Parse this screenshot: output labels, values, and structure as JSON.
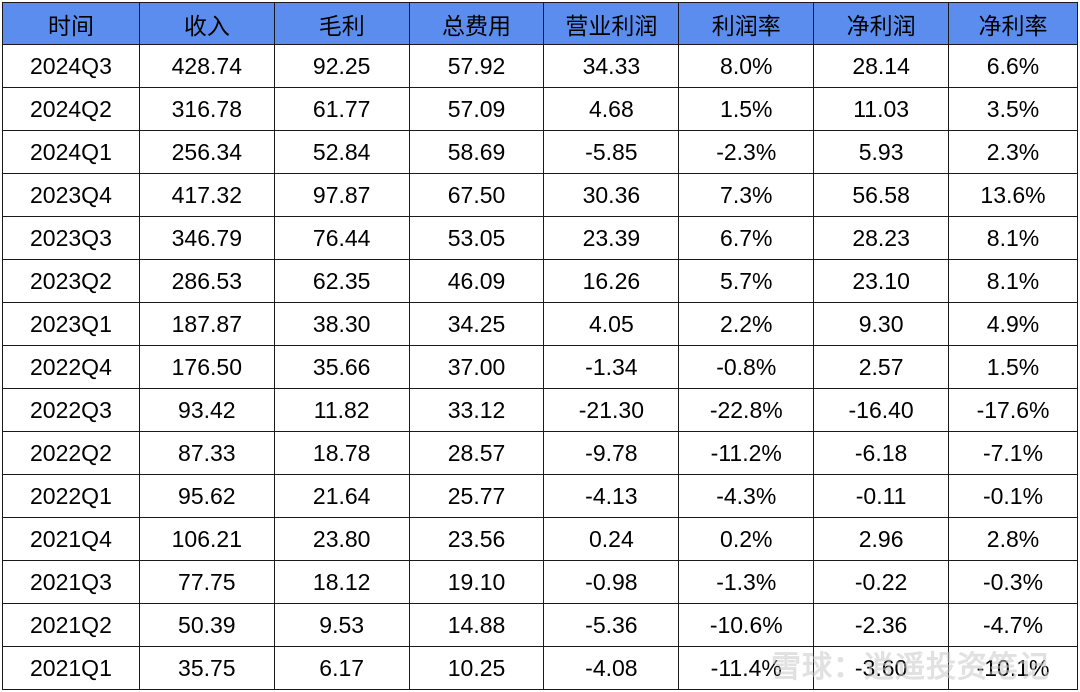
{
  "table": {
    "headers": [
      "时间",
      "收入",
      "毛利",
      "总费用",
      "营业利润",
      "利润率",
      "净利润",
      "净利率"
    ],
    "rows": [
      [
        "2024Q3",
        "428.74",
        "92.25",
        "57.92",
        "34.33",
        "8.0%",
        "28.14",
        "6.6%"
      ],
      [
        "2024Q2",
        "316.78",
        "61.77",
        "57.09",
        "4.68",
        "1.5%",
        "11.03",
        "3.5%"
      ],
      [
        "2024Q1",
        "256.34",
        "52.84",
        "58.69",
        "-5.85",
        "-2.3%",
        "5.93",
        "2.3%"
      ],
      [
        "2023Q4",
        "417.32",
        "97.87",
        "67.50",
        "30.36",
        "7.3%",
        "56.58",
        "13.6%"
      ],
      [
        "2023Q3",
        "346.79",
        "76.44",
        "53.05",
        "23.39",
        "6.7%",
        "28.23",
        "8.1%"
      ],
      [
        "2023Q2",
        "286.53",
        "62.35",
        "46.09",
        "16.26",
        "5.7%",
        "23.10",
        "8.1%"
      ],
      [
        "2023Q1",
        "187.87",
        "38.30",
        "34.25",
        "4.05",
        "2.2%",
        "9.30",
        "4.9%"
      ],
      [
        "2022Q4",
        "176.50",
        "35.66",
        "37.00",
        "-1.34",
        "-0.8%",
        "2.57",
        "1.5%"
      ],
      [
        "2022Q3",
        "93.42",
        "11.82",
        "33.12",
        "-21.30",
        "-22.8%",
        "-16.40",
        "-17.6%"
      ],
      [
        "2022Q2",
        "87.33",
        "18.78",
        "28.57",
        "-9.78",
        "-11.2%",
        "-6.18",
        "-7.1%"
      ],
      [
        "2022Q1",
        "95.62",
        "21.64",
        "25.77",
        "-4.13",
        "-4.3%",
        "-0.11",
        "-0.1%"
      ],
      [
        "2021Q4",
        "106.21",
        "23.80",
        "23.56",
        "0.24",
        "0.2%",
        "2.96",
        "2.8%"
      ],
      [
        "2021Q3",
        "77.75",
        "18.12",
        "19.10",
        "-0.98",
        "-1.3%",
        "-0.22",
        "-0.3%"
      ],
      [
        "2021Q2",
        "50.39",
        "9.53",
        "14.88",
        "-5.36",
        "-10.6%",
        "-2.36",
        "-4.7%"
      ],
      [
        "2021Q1",
        "35.75",
        "6.17",
        "10.25",
        "-4.08",
        "-11.4%",
        "-3.60",
        "-10.1%"
      ]
    ]
  },
  "watermark": "雪球：逍遥投资笔记",
  "colors": {
    "header_bg": "#5b8def",
    "border": "#1a1a1a"
  }
}
